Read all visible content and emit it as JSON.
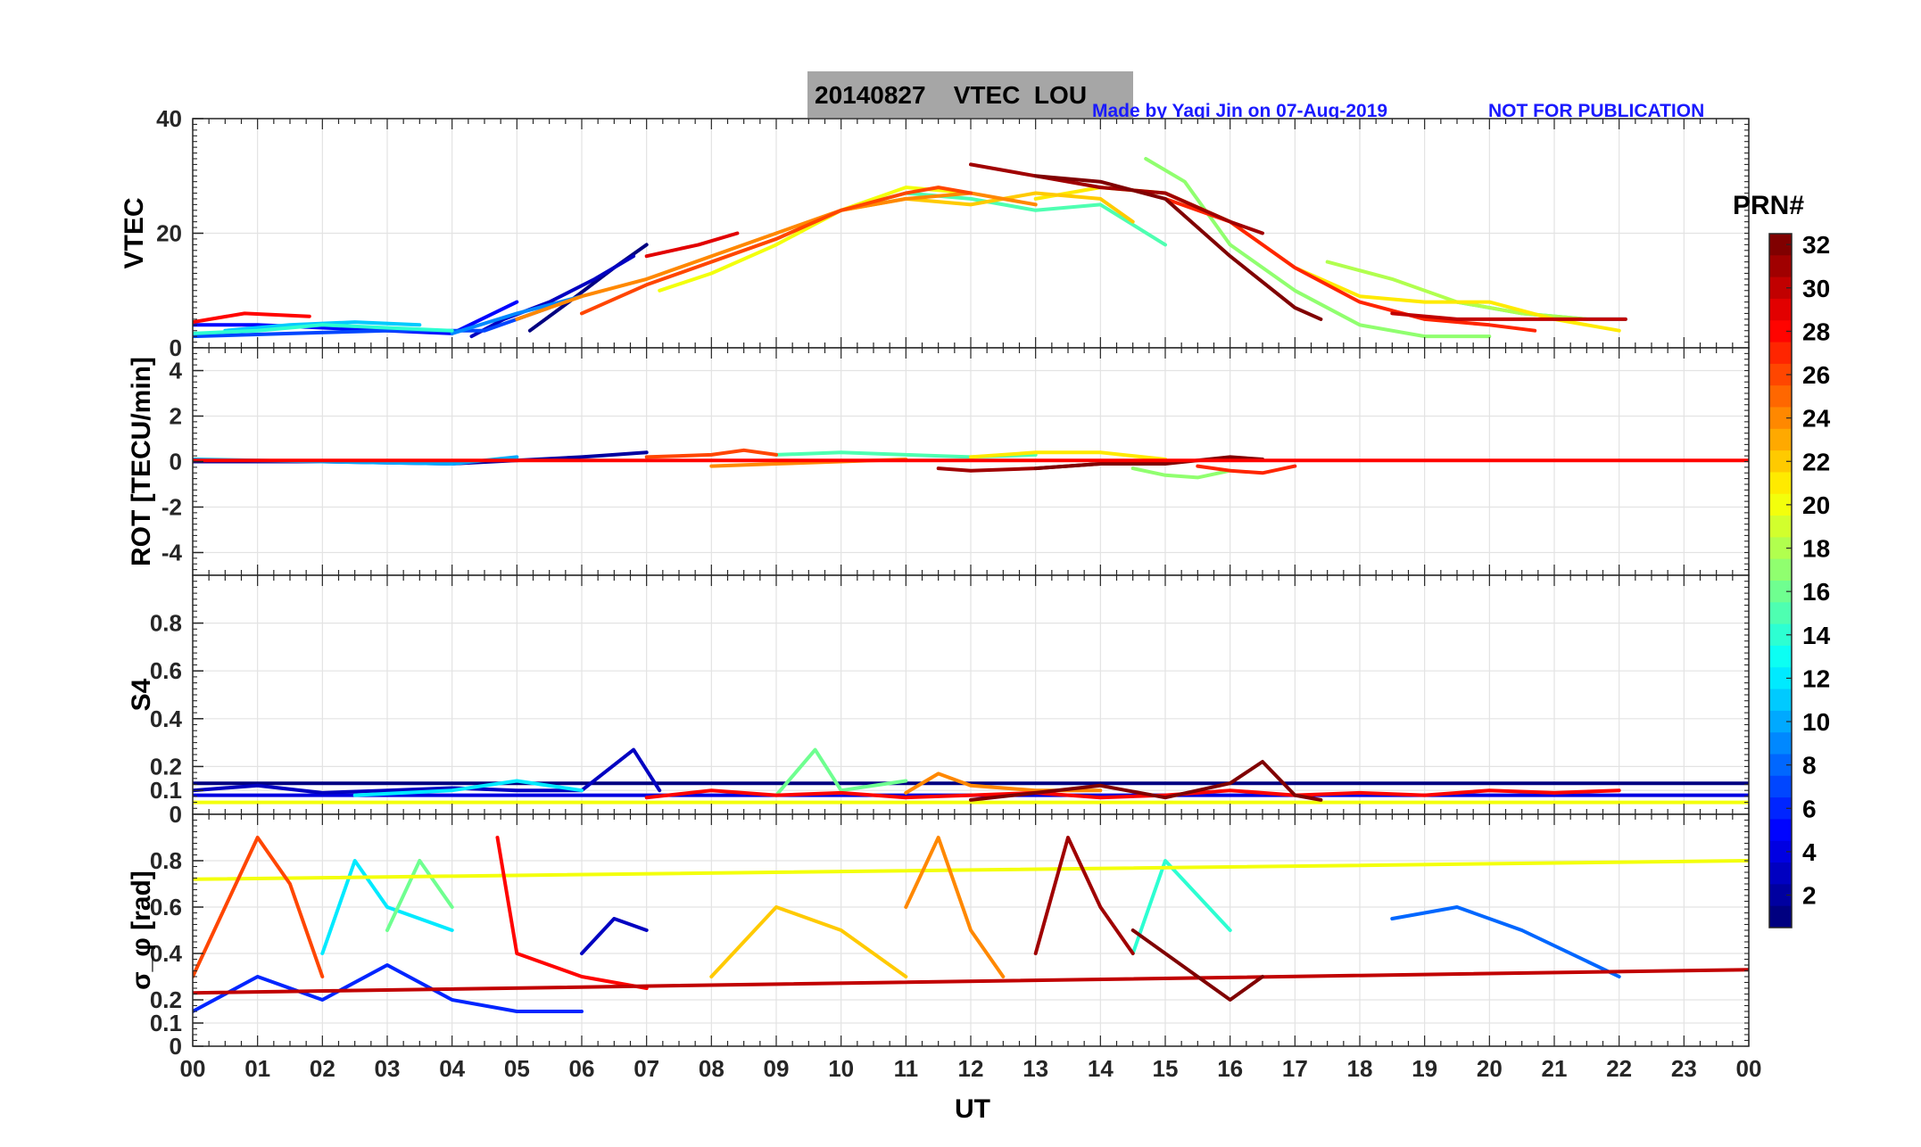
{
  "figure": {
    "title": "20140827    VTEC  LOU",
    "credit": "Made by Yaqi Jin on 07-Aug-2019",
    "notice": "NOT FOR PUBLICATION",
    "xlabel": "UT"
  },
  "chart_data": [
    {
      "type": "line",
      "panel": "vtec",
      "ylabel": "VTEC",
      "ylim": [
        0,
        40
      ],
      "yticks": [
        0,
        20,
        40
      ],
      "xlim": [
        0,
        24
      ],
      "grid": true,
      "series": [
        {
          "prn": 1,
          "x": [
            5.2,
            5.8,
            6.5,
            7.0
          ],
          "y": [
            3,
            8,
            14,
            18
          ]
        },
        {
          "prn": 3,
          "x": [
            4.3,
            4.8,
            5.5,
            6.2,
            6.8
          ],
          "y": [
            2,
            5,
            8,
            12,
            16
          ]
        },
        {
          "prn": 5,
          "x": [
            0.0,
            1.0,
            2.0,
            3.0,
            4.0,
            5.0
          ],
          "y": [
            4,
            4,
            3.5,
            3,
            2.5,
            8
          ]
        },
        {
          "prn": 7,
          "x": [
            0.0,
            1.5,
            3.0,
            4.5,
            5.5
          ],
          "y": [
            2,
            2.5,
            3,
            3,
            7
          ]
        },
        {
          "prn": 9,
          "x": [
            4.0,
            5.0,
            6.0
          ],
          "y": [
            2.5,
            6,
            9
          ]
        },
        {
          "prn": 11,
          "x": [
            0.5,
            1.5,
            2.5,
            3.5
          ],
          "y": [
            3,
            4,
            4.5,
            4
          ]
        },
        {
          "prn": 12,
          "x": [
            19.5,
            20.5,
            21.5,
            22.1
          ],
          "y": [
            8,
            6,
            5,
            5
          ]
        },
        {
          "prn": 14,
          "x": [
            0.0,
            1.0,
            2.0,
            3.0,
            4.0
          ],
          "y": [
            2.5,
            3,
            4,
            3.5,
            3
          ]
        },
        {
          "prn": 15,
          "x": [
            10.0,
            11.0,
            12.0,
            13.0,
            14.0,
            15.0
          ],
          "y": [
            24,
            27,
            26,
            24,
            25,
            18
          ]
        },
        {
          "prn": 17,
          "x": [
            14.7,
            15.3,
            16.0,
            17.0,
            18.0,
            19.0,
            20.0
          ],
          "y": [
            33,
            29,
            18,
            10,
            4,
            2,
            2
          ]
        },
        {
          "prn": 18,
          "x": [
            17.5,
            18.5,
            19.5,
            20.5,
            21.5
          ],
          "y": [
            15,
            12,
            8,
            6,
            5
          ]
        },
        {
          "prn": 20,
          "x": [
            7.2,
            8.0,
            9.0,
            10.0,
            11.0,
            12.0
          ],
          "y": [
            10,
            13,
            18,
            24,
            28,
            27
          ]
        },
        {
          "prn": 21,
          "x": [
            13.0,
            14.0,
            15.0,
            16.0,
            17.0,
            18.0,
            19.0,
            20.0,
            21.0,
            22.0
          ],
          "y": [
            26,
            28,
            27,
            22,
            14,
            9,
            8,
            8,
            5,
            3
          ]
        },
        {
          "prn": 22,
          "x": [
            8.0,
            9.0,
            10.0,
            11.0,
            12.0,
            13.0,
            14.0,
            14.5
          ],
          "y": [
            15,
            19,
            24,
            26,
            25,
            27,
            26,
            22
          ]
        },
        {
          "prn": 24,
          "x": [
            5.0,
            6.0,
            7.0,
            8.0,
            9.0,
            10.0,
            11.0,
            12.0,
            13.0
          ],
          "y": [
            5,
            9,
            12,
            16,
            20,
            24,
            26,
            27,
            25
          ]
        },
        {
          "prn": 26,
          "x": [
            6.0,
            7.0,
            8.0,
            9.0,
            10.0,
            11.0,
            11.5,
            12.0
          ],
          "y": [
            6,
            11,
            15,
            19,
            24,
            27,
            28,
            27
          ]
        },
        {
          "prn": 27,
          "x": [
            15.0,
            16.0,
            17.0,
            18.0,
            19.0,
            20.0,
            20.7
          ],
          "y": [
            26,
            22,
            14,
            8,
            5,
            4,
            3
          ]
        },
        {
          "prn": 28,
          "x": [
            0.0,
            0.8,
            1.8
          ],
          "y": [
            4.5,
            6,
            5.5
          ]
        },
        {
          "prn": 29,
          "x": [
            7.0,
            7.8,
            8.4
          ],
          "y": [
            16,
            18,
            20
          ]
        },
        {
          "prn": 30,
          "x": [
            18.5,
            19.5,
            20.5,
            21.5,
            22.1
          ],
          "y": [
            6,
            5,
            5,
            5,
            5
          ]
        },
        {
          "prn": 31,
          "x": [
            12.0,
            13.0,
            14.0,
            15.0,
            16.0,
            16.5
          ],
          "y": [
            32,
            30,
            28,
            27,
            22,
            20
          ]
        },
        {
          "prn": 32,
          "x": [
            13.0,
            14.0,
            15.0,
            16.0,
            17.0,
            17.4
          ],
          "y": [
            30,
            29,
            26,
            16,
            7,
            5
          ]
        }
      ]
    },
    {
      "type": "line",
      "panel": "rot",
      "ylabel": "ROT [TECU/min]",
      "ylim": [
        -5,
        5
      ],
      "yticks": [
        -4,
        -2,
        0,
        2,
        4
      ],
      "xlim": [
        0,
        24
      ],
      "grid": true,
      "series": [
        {
          "prn": 2,
          "x": [
            0.0,
            2.0,
            4.0,
            6.0,
            7.0
          ],
          "y": [
            0,
            0,
            -0.1,
            0.2,
            0.4
          ]
        },
        {
          "prn": 10,
          "x": [
            0.0,
            2.0,
            4.0,
            5.0
          ],
          "y": [
            0.1,
            0,
            -0.1,
            0.2
          ]
        },
        {
          "prn": 15,
          "x": [
            9.0,
            10.0,
            11.0,
            12.0,
            13.0
          ],
          "y": [
            0.3,
            0.4,
            0.3,
            0.2,
            0.3
          ]
        },
        {
          "prn": 17,
          "x": [
            14.5,
            15.0,
            15.5,
            16.0
          ],
          "y": [
            -0.3,
            -0.6,
            -0.7,
            -0.4
          ]
        },
        {
          "prn": 21,
          "x": [
            12.0,
            13.0,
            14.0,
            15.0
          ],
          "y": [
            0.2,
            0.4,
            0.4,
            0.1
          ]
        },
        {
          "prn": 24,
          "x": [
            8.0,
            9.0,
            10.0,
            11.0
          ],
          "y": [
            -0.2,
            -0.1,
            0,
            0.1
          ]
        },
        {
          "prn": 26,
          "x": [
            7.0,
            8.0,
            8.5,
            9.0
          ],
          "y": [
            0.2,
            0.3,
            0.5,
            0.3
          ]
        },
        {
          "prn": 27,
          "x": [
            15.5,
            16.0,
            16.5,
            17.0
          ],
          "y": [
            -0.2,
            -0.4,
            -0.5,
            -0.2
          ]
        },
        {
          "prn": 31,
          "x": [
            11.5,
            12.0,
            13.0,
            14.0
          ],
          "y": [
            -0.3,
            -0.4,
            -0.3,
            -0.1
          ]
        },
        {
          "prn": 32,
          "x": [
            13.0,
            14.0,
            15.0,
            16.0,
            16.5
          ],
          "y": [
            -0.3,
            -0.1,
            -0.1,
            0.2,
            0.1
          ]
        },
        {
          "prn": 28,
          "x": [
            0.0,
            6.0,
            12.0,
            18.0,
            24.0
          ],
          "y": [
            0.05,
            0.05,
            0.05,
            0.05,
            0.05
          ]
        }
      ]
    },
    {
      "type": "line",
      "panel": "s4",
      "ylabel": "S4",
      "ylim": [
        0,
        1
      ],
      "yticks": [
        0,
        0.1,
        0.2,
        0.4,
        0.6,
        0.8
      ],
      "xlim": [
        0,
        24
      ],
      "grid": true,
      "series": [
        {
          "prn": 1,
          "x": [
            0.0,
            24.0
          ],
          "y": [
            0.13,
            0.13
          ]
        },
        {
          "prn": 4,
          "x": [
            0.0,
            24.0
          ],
          "y": [
            0.08,
            0.08
          ]
        },
        {
          "prn": 3,
          "x": [
            0.0,
            1.0,
            2.0,
            3.0,
            4.0,
            5.0,
            6.0,
            6.8,
            7.2
          ],
          "y": [
            0.1,
            0.12,
            0.09,
            0.1,
            0.11,
            0.1,
            0.1,
            0.27,
            0.1
          ]
        },
        {
          "prn": 12,
          "x": [
            2.5,
            4.0,
            5.0,
            6.0
          ],
          "y": [
            0.08,
            0.1,
            0.14,
            0.1
          ]
        },
        {
          "prn": 16,
          "x": [
            9.0,
            9.6,
            10.0,
            11.0
          ],
          "y": [
            0.08,
            0.27,
            0.1,
            0.14
          ]
        },
        {
          "prn": 20,
          "x": [
            0.0,
            24.0
          ],
          "y": [
            0.05,
            0.05
          ]
        },
        {
          "prn": 24,
          "x": [
            11.0,
            11.5,
            12.0,
            13.0,
            14.0
          ],
          "y": [
            0.09,
            0.17,
            0.12,
            0.1,
            0.1
          ]
        },
        {
          "prn": 28,
          "x": [
            7.0,
            8.0,
            9.0,
            10.0,
            11.0,
            12.0,
            13.0,
            14.0,
            15.0,
            16.0,
            17.0,
            18.0,
            19.0,
            20.0,
            21.0,
            22.0
          ],
          "y": [
            0.07,
            0.1,
            0.08,
            0.09,
            0.07,
            0.08,
            0.09,
            0.07,
            0.08,
            0.1,
            0.08,
            0.09,
            0.08,
            0.1,
            0.09,
            0.1
          ]
        },
        {
          "prn": 32,
          "x": [
            12.0,
            13.0,
            14.0,
            15.0,
            16.0,
            16.5,
            17.0,
            17.4
          ],
          "y": [
            0.06,
            0.09,
            0.12,
            0.07,
            0.13,
            0.22,
            0.08,
            0.06
          ]
        }
      ]
    },
    {
      "type": "line",
      "panel": "sigma_phi",
      "ylabel": "σ_φ [rad]",
      "ylim": [
        0,
        1
      ],
      "yticks": [
        0,
        0.1,
        0.2,
        0.4,
        0.6,
        0.8
      ],
      "xlim": [
        0,
        24
      ],
      "grid": true,
      "series": [
        {
          "prn": 3,
          "x": [
            6.0,
            6.5,
            7.0
          ],
          "y": [
            0.4,
            0.55,
            0.5
          ]
        },
        {
          "prn": 6,
          "x": [
            0.0,
            1.0,
            2.0,
            3.0,
            4.0,
            5.0,
            6.0
          ],
          "y": [
            0.15,
            0.3,
            0.2,
            0.35,
            0.2,
            0.15,
            0.15
          ]
        },
        {
          "prn": 8,
          "x": [
            18.5,
            19.5,
            20.5,
            22.0
          ],
          "y": [
            0.55,
            0.6,
            0.5,
            0.3
          ]
        },
        {
          "prn": 12,
          "x": [
            2.0,
            2.5,
            3.0,
            4.0
          ],
          "y": [
            0.4,
            0.8,
            0.6,
            0.5
          ]
        },
        {
          "prn": 14,
          "x": [
            14.5,
            15.0,
            16.0
          ],
          "y": [
            0.4,
            0.8,
            0.5
          ]
        },
        {
          "prn": 16,
          "x": [
            3.0,
            3.5,
            4.0
          ],
          "y": [
            0.5,
            0.8,
            0.6
          ]
        },
        {
          "prn": 20,
          "x": [
            0.0,
            24.0
          ],
          "y": [
            0.72,
            0.8
          ]
        },
        {
          "prn": 22,
          "x": [
            8.0,
            9.0,
            10.0,
            11.0
          ],
          "y": [
            0.3,
            0.6,
            0.5,
            0.3
          ]
        },
        {
          "prn": 24,
          "x": [
            11.0,
            11.5,
            12.0,
            12.5
          ],
          "y": [
            0.6,
            0.9,
            0.5,
            0.3
          ]
        },
        {
          "prn": 26,
          "x": [
            0.0,
            0.5,
            1.0,
            1.5,
            2.0
          ],
          "y": [
            0.3,
            0.6,
            0.9,
            0.7,
            0.3
          ]
        },
        {
          "prn": 28,
          "x": [
            4.7,
            5.0,
            6.0,
            7.0
          ],
          "y": [
            0.9,
            0.4,
            0.3,
            0.25
          ]
        },
        {
          "prn": 30,
          "x": [
            0.0,
            24.0
          ],
          "y": [
            0.23,
            0.33
          ]
        },
        {
          "prn": 31,
          "x": [
            13.0,
            13.5,
            14.0,
            14.5
          ],
          "y": [
            0.4,
            0.9,
            0.6,
            0.4
          ]
        },
        {
          "prn": 32,
          "x": [
            14.5,
            15.5,
            16.0,
            16.5
          ],
          "y": [
            0.5,
            0.3,
            0.2,
            0.3
          ]
        }
      ]
    }
  ],
  "xaxis": {
    "ticks": [
      "00",
      "01",
      "02",
      "03",
      "04",
      "05",
      "06",
      "07",
      "08",
      "09",
      "10",
      "11",
      "12",
      "13",
      "14",
      "15",
      "16",
      "17",
      "18",
      "19",
      "20",
      "21",
      "22",
      "23",
      "00"
    ]
  },
  "colorbar": {
    "title": "PRN#",
    "min": 1,
    "max": 32,
    "ticks": [
      "32",
      "30",
      "28",
      "26",
      "24",
      "22",
      "20",
      "18",
      "16",
      "14",
      "12",
      "10",
      "8",
      "6",
      "4",
      "2"
    ],
    "colormap": "jet"
  }
}
